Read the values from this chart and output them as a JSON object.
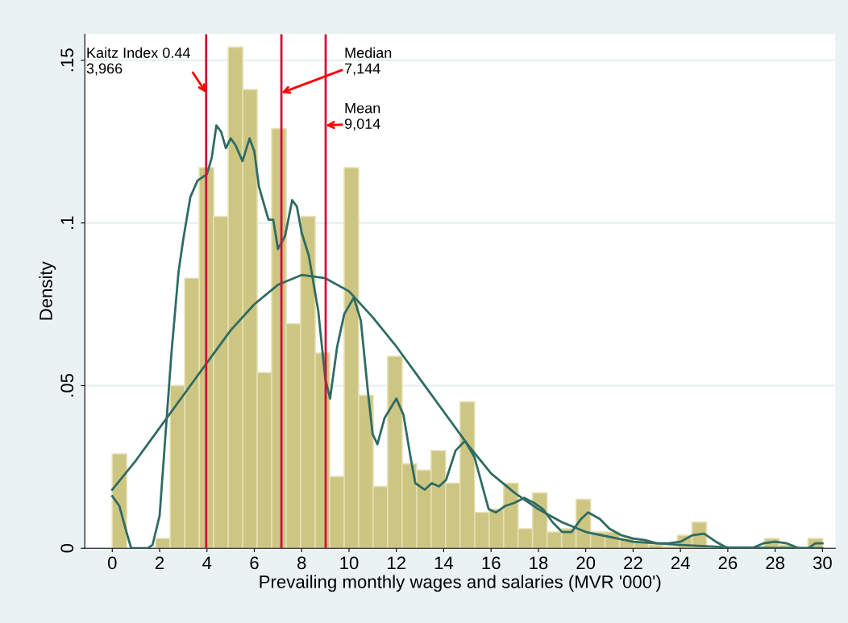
{
  "chart_data": {
    "type": "histogram",
    "xlabel": "Prevailing monthly wages and salaries (MVR '000')",
    "ylabel": "Density",
    "bins": [
      0,
      0.612,
      1.224,
      1.837,
      2.449,
      3.061,
      3.673,
      4.286,
      4.898,
      5.51,
      6.122,
      6.735,
      7.347,
      7.959,
      8.571,
      9.184,
      9.796,
      10.408,
      11.02,
      11.633,
      12.245,
      12.857,
      13.469,
      14.082,
      14.694,
      15.306,
      15.918,
      16.531,
      17.143,
      17.755,
      18.367,
      18.98,
      19.592,
      20.204,
      20.816,
      21.429,
      22.041,
      22.653,
      23.265,
      23.878,
      24.49,
      25.102,
      25.714,
      26.327,
      26.939,
      27.551,
      28.163,
      28.776,
      29.388,
      30.0
    ],
    "values": [
      0.029,
      0,
      0,
      0.003,
      0.05,
      0.083,
      0.117,
      0.102,
      0.154,
      0.141,
      0.054,
      0.129,
      0.069,
      0.102,
      0.06,
      0.022,
      0.117,
      0.047,
      0.019,
      0.059,
      0.026,
      0.024,
      0.03,
      0.02,
      0.045,
      0.011,
      0.012,
      0.02,
      0.006,
      0.017,
      0.005,
      0.006,
      0.015,
      0.005,
      0.005,
      0.003,
      0.002,
      0.001,
      0.0005,
      0.004,
      0.008,
      0,
      null,
      null,
      null,
      0.003,
      0.001,
      0,
      0.003
    ],
    "color": "#cdc582",
    "series": [
      {
        "type": "line",
        "color": "#2f6b63",
        "x": [
          0,
          0.3,
          0.6,
          0.8,
          1.5,
          1.7,
          2.0,
          2.2,
          2.5,
          2.8,
          3.0,
          3.3,
          3.6,
          4.0,
          4.2,
          4.4,
          4.6,
          4.8,
          5.0,
          5.2,
          5.5,
          5.8,
          6.0,
          6.2,
          6.4,
          6.6,
          6.8,
          7.0,
          7.3,
          7.6,
          7.8,
          8.0,
          8.3,
          8.7,
          9.0,
          9.2,
          9.5,
          9.8,
          10.2,
          10.5,
          10.8,
          11.0,
          11.2,
          11.5,
          12.0,
          12.3,
          12.6,
          12.8,
          13.2,
          13.5,
          13.8,
          14.1,
          14.5,
          14.9,
          15.3,
          15.6,
          15.9,
          16.2,
          16.6,
          17.0,
          17.4,
          17.8,
          18.2,
          18.6,
          19.0,
          19.4,
          19.8,
          20.1,
          20.6,
          21.0,
          21.5,
          22.0,
          22.5,
          23.0,
          23.5,
          24.0,
          24.5,
          25.0,
          25.5,
          26.0,
          27.0,
          27.5,
          28.0,
          28.5,
          29.0,
          29.4,
          29.7,
          30.0
        ],
        "values": [
          0.016,
          0.013,
          0.005,
          0.0,
          0.0,
          0.001,
          0.01,
          0.03,
          0.06,
          0.085,
          0.095,
          0.108,
          0.113,
          0.115,
          0.12,
          0.13,
          0.128,
          0.123,
          0.126,
          0.124,
          0.119,
          0.126,
          0.122,
          0.111,
          0.106,
          0.101,
          0.101,
          0.092,
          0.096,
          0.107,
          0.105,
          0.097,
          0.09,
          0.073,
          0.052,
          0.046,
          0.062,
          0.072,
          0.077,
          0.07,
          0.048,
          0.035,
          0.032,
          0.04,
          0.046,
          0.041,
          0.028,
          0.02,
          0.018,
          0.02,
          0.019,
          0.021,
          0.03,
          0.033,
          0.028,
          0.02,
          0.012,
          0.011,
          0.013,
          0.014,
          0.0155,
          0.014,
          0.012,
          0.008,
          0.005,
          0.005,
          0.009,
          0.011,
          0.009,
          0.006,
          0.004,
          0.003,
          0.0025,
          0.0015,
          0.0015,
          0.002,
          0.004,
          0.0045,
          0.002,
          0.0,
          0.0,
          0.0015,
          0.002,
          0.0015,
          0.0,
          0.0,
          0.0015,
          0.0015
        ]
      },
      {
        "type": "line",
        "color": "#2f6b63",
        "x": [
          0,
          1,
          2,
          3,
          4,
          5,
          6,
          7,
          8,
          9,
          10,
          11,
          12,
          13,
          14,
          15,
          16,
          17,
          18,
          19,
          20,
          22,
          24,
          26,
          28,
          30
        ],
        "values": [
          0.018,
          0.027,
          0.037,
          0.047,
          0.057,
          0.067,
          0.075,
          0.081,
          0.084,
          0.083,
          0.079,
          0.071,
          0.062,
          0.052,
          0.042,
          0.032,
          0.023,
          0.017,
          0.012,
          0.008,
          0.005,
          0.002,
          0.001,
          0.0003,
          0.0001,
          0
        ]
      }
    ],
    "ref_lines": [
      {
        "axis": "x",
        "value": 3.966,
        "label": "Kaitz Index 0.44\n3,966",
        "color": "#d0103a"
      },
      {
        "axis": "x",
        "value": 7.144,
        "label": "Median\n7,144",
        "color": "#d0103a"
      },
      {
        "axis": "x",
        "value": 9.014,
        "label": "Mean\n9,014",
        "color": "#d0103a"
      }
    ],
    "xlim": [
      -1.16,
      30.54
    ],
    "ylim": [
      0,
      0.158
    ],
    "xticks": [
      0,
      2,
      4,
      6,
      8,
      10,
      12,
      14,
      16,
      18,
      20,
      22,
      24,
      26,
      28,
      30
    ],
    "yticks": [
      {
        "value": 0,
        "label": "0"
      },
      {
        "value": 0.05,
        "label": ".05"
      },
      {
        "value": 0.1,
        "label": ".1"
      },
      {
        "value": 0.15,
        "label": ".15"
      }
    ],
    "grid": "y"
  }
}
